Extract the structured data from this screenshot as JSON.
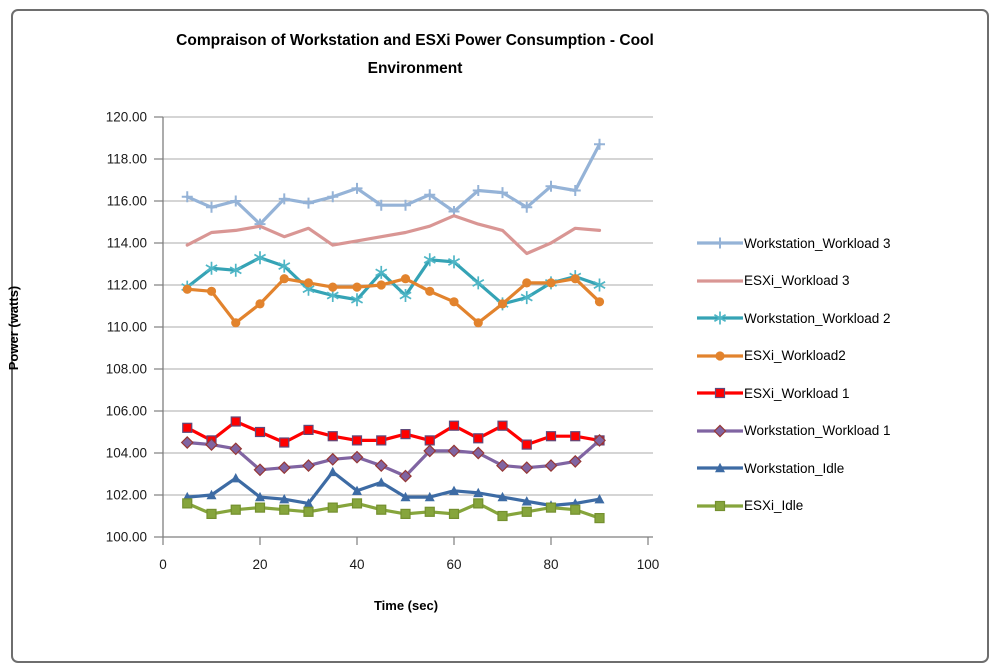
{
  "figure": {
    "title_line1": "Compraison of Workstation and ESXi Power Consumption - Cool",
    "title_line2": "Environment"
  },
  "chart_data": {
    "type": "line",
    "title": "Compraison of Workstation and ESXi Power Consumption - Cool Environment",
    "xlabel": "Time (sec)",
    "ylabel": "Power (watts)",
    "xlim": [
      0,
      100
    ],
    "ylim": [
      100,
      120
    ],
    "grid": true,
    "legend_position": "right",
    "x_ticks": [
      0,
      20,
      40,
      60,
      80,
      100
    ],
    "x_tick_labels": [
      "0",
      "20",
      "40",
      "60",
      "80",
      "100"
    ],
    "y_ticks": [
      100,
      102,
      104,
      106,
      108,
      110,
      112,
      114,
      116,
      118,
      120
    ],
    "y_tick_labels": [
      "100.00",
      "102.00",
      "104.00",
      "106.00",
      "108.00",
      "110.00",
      "112.00",
      "114.00",
      "116.00",
      "118.00",
      "120.00"
    ],
    "x": [
      5,
      10,
      15,
      20,
      25,
      30,
      35,
      40,
      45,
      50,
      55,
      60,
      65,
      70,
      75,
      80,
      85,
      90
    ],
    "series": [
      {
        "name": "Workstation_Workload 3",
        "color": "#95B3D7",
        "marker": "plus",
        "marker_stroke": "#95B3D7",
        "values": [
          116.2,
          115.7,
          116.0,
          114.9,
          116.1,
          115.9,
          116.2,
          116.6,
          115.8,
          115.8,
          116.3,
          115.5,
          116.5,
          116.4,
          115.7,
          116.7,
          116.5,
          118.7
        ]
      },
      {
        "name": "ESXi_Workload 3",
        "color": "#D99694",
        "marker": "none",
        "marker_stroke": "#D99694",
        "values": [
          113.9,
          114.5,
          114.6,
          114.8,
          114.3,
          114.7,
          113.9,
          114.1,
          114.3,
          114.5,
          114.8,
          115.3,
          114.9,
          114.6,
          113.5,
          114.0,
          114.7,
          114.6
        ]
      },
      {
        "name": "Workstation_Workload 2",
        "color": "#35A3B5",
        "marker": "asterisk",
        "marker_stroke": "#4FB6C6",
        "values": [
          111.9,
          112.8,
          112.7,
          113.3,
          112.9,
          111.8,
          111.5,
          111.3,
          112.6,
          111.5,
          113.2,
          113.1,
          112.1,
          111.1,
          111.4,
          112.1,
          112.4,
          112.0
        ]
      },
      {
        "name": "ESXi_Workload2",
        "color": "#E2832D",
        "marker": "circle",
        "marker_stroke": "#E2832D",
        "values": [
          111.8,
          111.7,
          110.2,
          111.1,
          112.3,
          112.1,
          111.9,
          111.9,
          112.0,
          112.3,
          111.7,
          111.2,
          110.2,
          111.1,
          112.1,
          112.1,
          112.3,
          111.2
        ]
      },
      {
        "name": "ESXi_Workload 1",
        "color": "#FF0000",
        "marker": "square",
        "marker_stroke": "#5F497A",
        "values": [
          105.2,
          104.6,
          105.5,
          105.0,
          104.5,
          105.1,
          104.8,
          104.6,
          104.6,
          104.9,
          104.6,
          105.3,
          104.7,
          105.3,
          104.4,
          104.8,
          104.8,
          104.6
        ]
      },
      {
        "name": "Workstation_Workload 1",
        "color": "#8064A2",
        "marker": "diamond",
        "marker_stroke": "#953735",
        "values": [
          104.5,
          104.4,
          104.2,
          103.2,
          103.3,
          103.4,
          103.7,
          103.8,
          103.4,
          102.9,
          104.1,
          104.1,
          104.0,
          103.4,
          103.3,
          103.4,
          103.6,
          104.6
        ]
      },
      {
        "name": "Workstation_Idle",
        "color": "#3D6BA4",
        "marker": "triangle",
        "marker_stroke": "#3D6BA4",
        "values": [
          101.9,
          102.0,
          102.8,
          101.9,
          101.8,
          101.6,
          103.1,
          102.2,
          102.6,
          101.9,
          101.9,
          102.2,
          102.1,
          101.9,
          101.7,
          101.5,
          101.6,
          101.8
        ]
      },
      {
        "name": "ESXi_Idle",
        "color": "#86A53C",
        "marker": "square",
        "marker_stroke": "#74902F",
        "values": [
          101.6,
          101.1,
          101.3,
          101.4,
          101.3,
          101.2,
          101.4,
          101.6,
          101.3,
          101.1,
          101.2,
          101.1,
          101.6,
          101.0,
          101.2,
          101.4,
          101.3,
          100.9
        ]
      }
    ]
  }
}
